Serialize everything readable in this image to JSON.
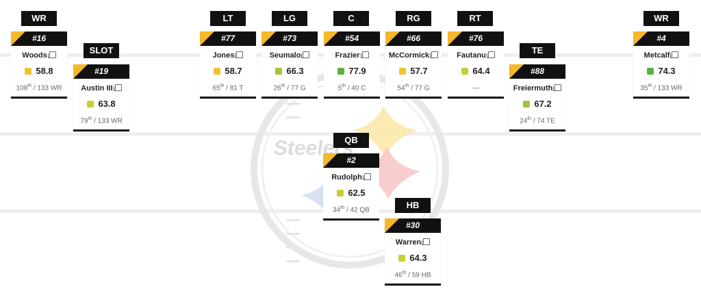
{
  "logo": {
    "wordmark": "Steelers"
  },
  "colors": {
    "accent": "#f5b82a",
    "card_header": "#111111",
    "grade_yellow": "#f2c230",
    "grade_lime": "#c9cd3a",
    "grade_yellowgreen": "#9fc43a",
    "grade_green": "#5caf3f"
  },
  "positions": [
    {
      "label": "WR",
      "number": "#16",
      "name": "Woods",
      "grade": "58.8",
      "grade_color": "#f2c230",
      "rank": "108",
      "rank_sup": "th",
      "rank_of": " / 133 WR"
    },
    {
      "label": "SLOT",
      "number": "#19",
      "name": "Austin III",
      "grade": "63.8",
      "grade_color": "#c9cd3a",
      "rank": "79",
      "rank_sup": "th",
      "rank_of": " / 133 WR"
    },
    {
      "label": "LT",
      "number": "#77",
      "name": "Jones",
      "grade": "58.7",
      "grade_color": "#f2c230",
      "rank": "65",
      "rank_sup": "th",
      "rank_of": " / 81 T"
    },
    {
      "label": "LG",
      "number": "#73",
      "name": "Seumalo",
      "grade": "66.3",
      "grade_color": "#9fc43a",
      "rank": "26",
      "rank_sup": "th",
      "rank_of": " / 77 G"
    },
    {
      "label": "C",
      "number": "#54",
      "name": "Frazier",
      "grade": "77.9",
      "grade_color": "#5caf3f",
      "rank": "5",
      "rank_sup": "th",
      "rank_of": " / 40 C"
    },
    {
      "label": "RG",
      "number": "#66",
      "name": "McCormick",
      "grade": "57.7",
      "grade_color": "#f2c230",
      "rank": "54",
      "rank_sup": "th",
      "rank_of": " / 77 G"
    },
    {
      "label": "RT",
      "number": "#76",
      "name": "Fautanu",
      "grade": "64.4",
      "grade_color": "#c9cd3a",
      "rank": "",
      "rank_sup": "",
      "rank_of": "—"
    },
    {
      "label": "TE",
      "number": "#88",
      "name": "Freiermuth",
      "grade": "67.2",
      "grade_color": "#9fc43a",
      "rank": "24",
      "rank_sup": "th",
      "rank_of": " / 74 TE"
    },
    {
      "label": "WR",
      "number": "#4",
      "name": "Metcalf",
      "grade": "74.3",
      "grade_color": "#5caf3f",
      "rank": "35",
      "rank_sup": "th",
      "rank_of": " / 133 WR"
    },
    {
      "label": "QB",
      "number": "#2",
      "name": "Rudolph",
      "grade": "62.5",
      "grade_color": "#c9cd3a",
      "rank": "34",
      "rank_sup": "th",
      "rank_of": " / 42 QB"
    },
    {
      "label": "HB",
      "number": "#30",
      "name": "Warren",
      "grade": "64.3",
      "grade_color": "#c9cd3a",
      "rank": "46",
      "rank_sup": "th",
      "rank_of": " / 59 HB"
    }
  ]
}
